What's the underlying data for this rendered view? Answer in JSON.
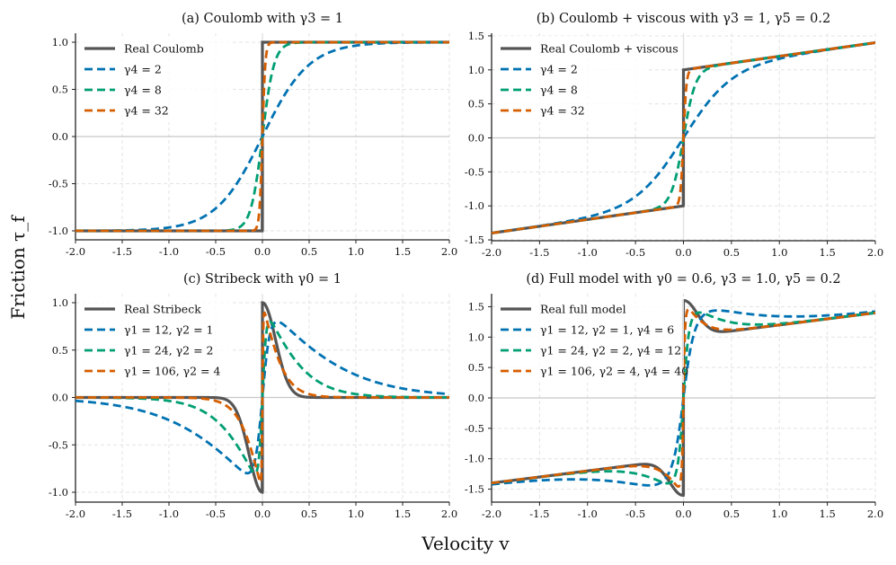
{
  "figure": {
    "xlabel": "Velocity v",
    "ylabel": "Friction τ_f"
  },
  "colors": {
    "real": "#555555",
    "blue": "#0072B2",
    "green": "#009E73",
    "orange": "#D55E00"
  },
  "chart_data": [
    {
      "type": "line",
      "title": "(a) Coulomb with γ3 = 1",
      "xlim": [
        -2,
        2
      ],
      "ylim": [
        -1.1,
        1.1
      ],
      "xticks": [
        "-2.0",
        "-1.5",
        "-1.0",
        "-0.5",
        "0.0",
        "0.5",
        "1.0",
        "1.5",
        "2.0"
      ],
      "yticks": [
        "-1.0",
        "-0.5",
        "0.0",
        "0.5",
        "1.0"
      ],
      "legend": "top-left",
      "model": "tau = g0*(tanh(g1 v)-tanh(g2 v)) + g3*tanh(g4 v) + g5*v",
      "real": {
        "name": "Real Coulomb",
        "g0": 0,
        "g3": 1,
        "g5": 0
      },
      "series": [
        {
          "name": "γ4 = 2",
          "color": "blue",
          "g0": 0,
          "g1": 0,
          "g2": 0,
          "g3": 1,
          "g4": 2,
          "g5": 0
        },
        {
          "name": "γ4 = 8",
          "color": "green",
          "g0": 0,
          "g1": 0,
          "g2": 0,
          "g3": 1,
          "g4": 8,
          "g5": 0
        },
        {
          "name": "γ4 = 32",
          "color": "orange",
          "g0": 0,
          "g1": 0,
          "g2": 0,
          "g3": 1,
          "g4": 32,
          "g5": 0
        }
      ]
    },
    {
      "type": "line",
      "title": "(b) Coulomb + viscous with γ3 = 1, γ5 = 0.2",
      "xlim": [
        -2,
        2
      ],
      "ylim": [
        -1.55,
        1.55
      ],
      "xticks": [
        "-2.0",
        "-1.5",
        "-1.0",
        "-0.5",
        "0.0",
        "0.5",
        "1.0",
        "1.5",
        "2.0"
      ],
      "yticks": [
        "-1.5",
        "-1.0",
        "-0.5",
        "0.0",
        "0.5",
        "1.0",
        "1.5"
      ],
      "legend": "top-left",
      "real": {
        "name": "Real Coulomb + viscous",
        "g0": 0,
        "g3": 1,
        "g5": 0.2
      },
      "series": [
        {
          "name": "γ4 = 2",
          "color": "blue",
          "g0": 0,
          "g1": 0,
          "g2": 0,
          "g3": 1,
          "g4": 2,
          "g5": 0.2
        },
        {
          "name": "γ4 = 8",
          "color": "green",
          "g0": 0,
          "g1": 0,
          "g2": 0,
          "g3": 1,
          "g4": 8,
          "g5": 0.2
        },
        {
          "name": "γ4 = 32",
          "color": "orange",
          "g0": 0,
          "g1": 0,
          "g2": 0,
          "g3": 1,
          "g4": 32,
          "g5": 0.2
        }
      ]
    },
    {
      "type": "line",
      "title": "(c) Stribeck with γ0 = 1",
      "xlim": [
        -2,
        2
      ],
      "ylim": [
        -1.1,
        1.1
      ],
      "xticks": [
        "-2.0",
        "-1.5",
        "-1.0",
        "-0.5",
        "0.0",
        "0.5",
        "1.0",
        "1.5",
        "2.0"
      ],
      "yticks": [
        "-1.0",
        "-0.5",
        "0.0",
        "0.5",
        "1.0"
      ],
      "legend": "top-left",
      "real": {
        "name": "Real Stribeck",
        "g0": 1,
        "g3": 0,
        "g5": 0,
        "vs": 0.2
      },
      "series": [
        {
          "name": "γ1 = 12,  γ2 = 1",
          "color": "blue",
          "g0": 1,
          "g1": 12,
          "g2": 1,
          "g3": 0,
          "g4": 0,
          "g5": 0
        },
        {
          "name": "γ1 = 24,  γ2 = 2",
          "color": "green",
          "g0": 1,
          "g1": 24,
          "g2": 2,
          "g3": 0,
          "g4": 0,
          "g5": 0
        },
        {
          "name": "γ1 = 106,  γ2 = 4",
          "color": "orange",
          "g0": 1,
          "g1": 106,
          "g2": 4,
          "g3": 0,
          "g4": 0,
          "g5": 0
        }
      ]
    },
    {
      "type": "line",
      "title": "(d) Full model with γ0 = 0.6, γ3 = 1.0, γ5 = 0.2",
      "xlim": [
        -2,
        2
      ],
      "ylim": [
        -1.75,
        1.75
      ],
      "xticks": [
        "-2.0",
        "-1.5",
        "-1.0",
        "-0.5",
        "0.0",
        "0.5",
        "1.0",
        "1.5",
        "2.0"
      ],
      "yticks": [
        "-1.5",
        "-1.0",
        "-0.5",
        "0.0",
        "0.5",
        "1.0",
        "1.5"
      ],
      "legend": "top-left",
      "real": {
        "name": "Real full model",
        "g0": 0.6,
        "g3": 1,
        "g5": 0.2,
        "vs": 0.2
      },
      "series": [
        {
          "name": "γ1 = 12,  γ2 = 1,  γ4 = 6",
          "color": "blue",
          "g0": 0.6,
          "g1": 12,
          "g2": 1,
          "g3": 1,
          "g4": 6,
          "g5": 0.2
        },
        {
          "name": "γ1 = 24,  γ2 = 2,  γ4 = 12",
          "color": "green",
          "g0": 0.6,
          "g1": 24,
          "g2": 2,
          "g3": 1,
          "g4": 12,
          "g5": 0.2
        },
        {
          "name": "γ1 = 106,  γ2 = 4,  γ4 = 40",
          "color": "orange",
          "g0": 0.6,
          "g1": 106,
          "g2": 4,
          "g3": 1,
          "g4": 40,
          "g5": 0.2
        }
      ]
    }
  ]
}
